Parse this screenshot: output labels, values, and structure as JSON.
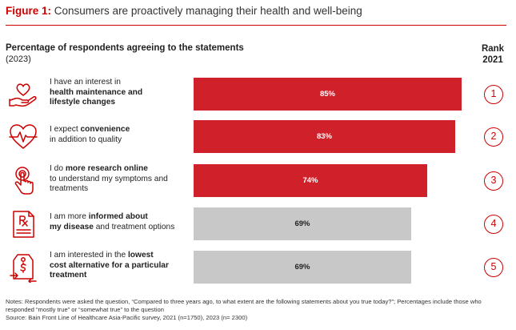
{
  "figure": {
    "title_lead": "Figure 1:",
    "title_rest": "Consumers are proactively managing their health and well-being"
  },
  "chart": {
    "subtitle": "Percentage of respondents agreeing to the statements",
    "year": "(2023)",
    "rank_header_line1": "Rank",
    "rank_header_line2": "2021"
  },
  "chart_data": {
    "type": "bar",
    "orientation": "horizontal",
    "title": "Percentage of respondents agreeing to the statements",
    "categories": [
      "I have an interest in health maintenance and lifestyle changes",
      "I expect convenience in addition to quality",
      "I do more research online to understand my symptoms and treatments",
      "I am more informed about my disease and treatment options",
      "I am interested in the lowest cost alternative for a particular treatment"
    ],
    "values": [
      85,
      83,
      74,
      69,
      69
    ],
    "value_labels": [
      "85%",
      "83%",
      "74%",
      "69%",
      "69%"
    ],
    "bar_colors": [
      "#d0202a",
      "#d0202a",
      "#d0202a",
      "#c8c8c8",
      "#c8c8c8"
    ],
    "rank_2021": [
      "1",
      "2",
      "3",
      "4",
      "5"
    ],
    "xlim": [
      0,
      100
    ],
    "grid": false
  },
  "rows": [
    {
      "icon": "hand-heart-icon",
      "text_parts": [
        {
          "t": "I have an interest in",
          "b": false
        },
        {
          "t": "health maintenance and",
          "b": true
        },
        {
          "t": "lifestyle changes",
          "b": true
        }
      ]
    },
    {
      "icon": "heartbeat-icon",
      "text_parts": [
        {
          "t": "I expect ",
          "b": false
        },
        {
          "t": "convenience",
          "b": true
        },
        {
          "t": "in addition to quality",
          "b": false
        }
      ]
    },
    {
      "icon": "touch-finger-icon",
      "text_parts": [
        {
          "t": "I do ",
          "b": false
        },
        {
          "t": "more research online",
          "b": true
        },
        {
          "t": "to understand my symptoms and",
          "b": false
        },
        {
          "t": "treatments",
          "b": false
        }
      ]
    },
    {
      "icon": "prescription-icon",
      "text_parts": [
        {
          "t": "I am more ",
          "b": false
        },
        {
          "t": "informed about",
          "b": true
        },
        {
          "t": "my disease",
          "b": true
        },
        {
          "t": " and treatment options",
          "b": false
        }
      ]
    },
    {
      "icon": "price-tag-icon",
      "text_parts": [
        {
          "t": "I am interested in the ",
          "b": false
        },
        {
          "t": "lowest",
          "b": true
        },
        {
          "t": "cost alternative for a particular",
          "b": true
        },
        {
          "t": "treatment",
          "b": true
        }
      ]
    }
  ],
  "notes": {
    "line1": "Notes: Respondents were asked the question, “Compared to three years ago, to what extent are the following statements about you true today?”; Percentages include those who responded “mostly true” or “somewhat true” to the question",
    "line2": "Source: Bain Front Line of Healthcare Asia-Pacific survey, 2021 (n=1750), 2023 (n= 2300)"
  },
  "colors": {
    "accent": "#cc0000",
    "bar_highlight": "#d0202a",
    "bar_muted": "#c8c8c8",
    "icon_stroke": "#cc0000"
  }
}
